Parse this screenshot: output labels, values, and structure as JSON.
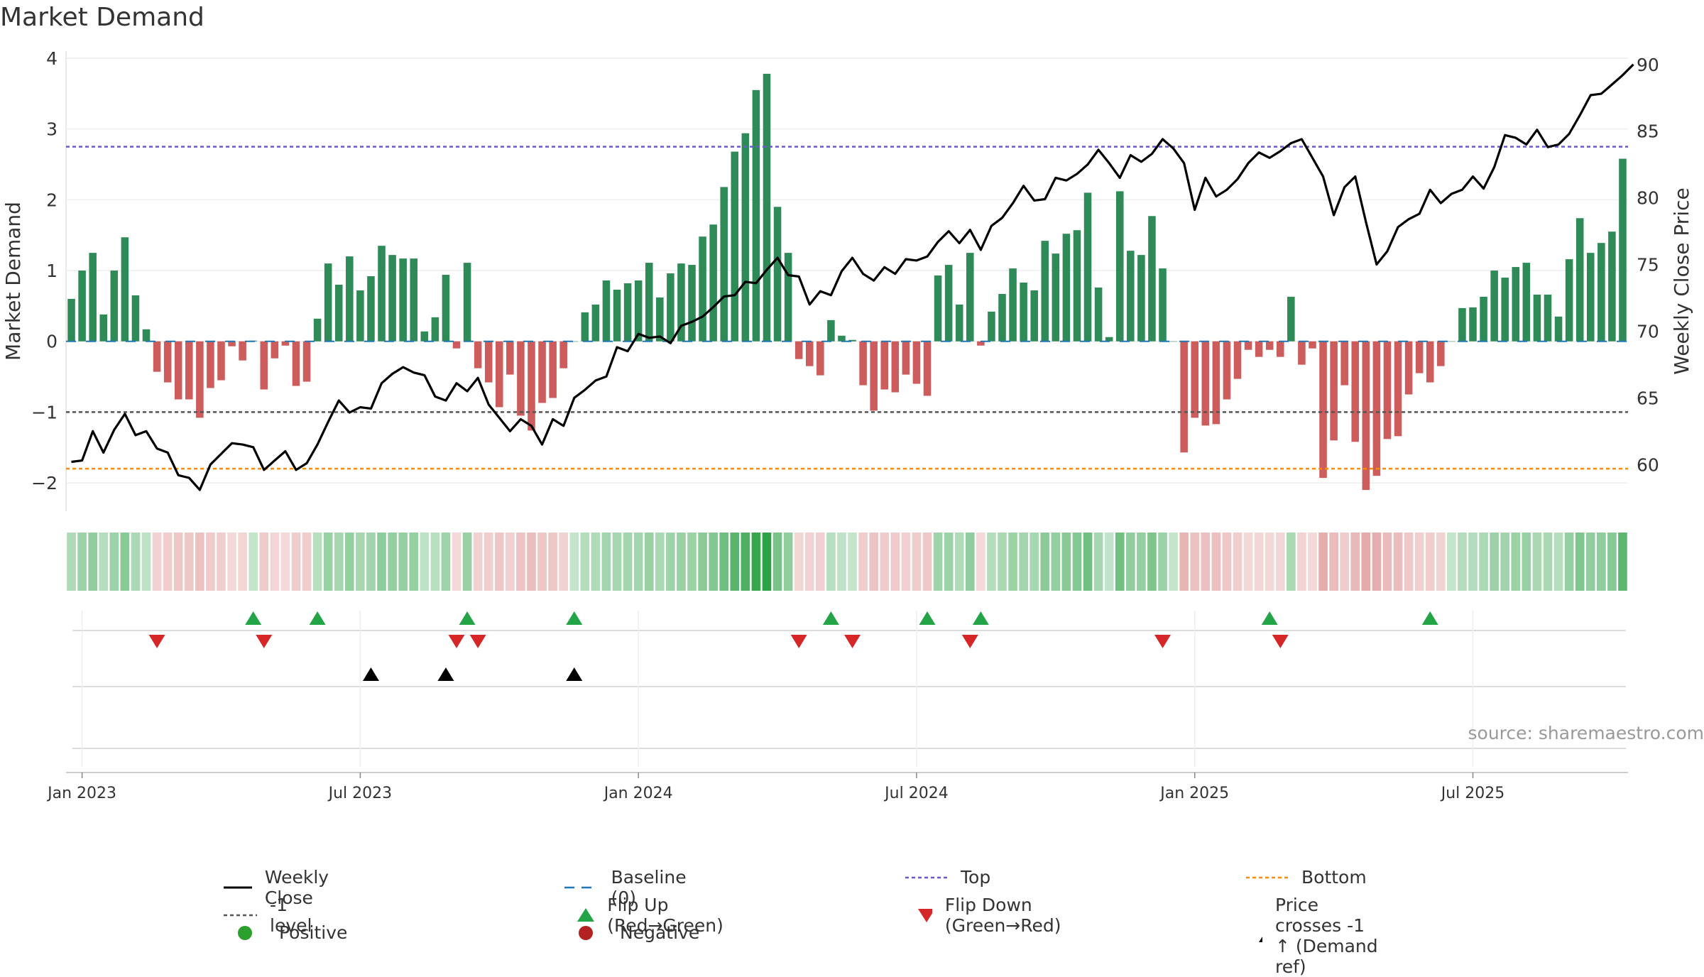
{
  "title": "Market Demand",
  "source": "source: sharemaestro.com",
  "colors": {
    "positive": "#2e8b57",
    "negative": "#cd5c5c",
    "baseline": "#1f77b4",
    "top": "#6a5acd",
    "bottom": "#ff8c00",
    "minus1": "#555555",
    "flip_up": "#22a447",
    "flip_down": "#d62728",
    "cross": "#000000",
    "close": "#000000"
  },
  "legend": [
    {
      "key": "close",
      "label": "Weekly Close",
      "marker": "line"
    },
    {
      "key": "baseline",
      "label": "Baseline (0)",
      "marker": "dash"
    },
    {
      "key": "top",
      "label": "Top",
      "marker": "dot"
    },
    {
      "key": "bottom",
      "label": "Bottom",
      "marker": "dot"
    },
    {
      "key": "minus1",
      "label": "-1 level",
      "marker": "dot"
    },
    {
      "key": "flip_up",
      "label": "Flip Up (Red→Green)",
      "marker": "tri-up"
    },
    {
      "key": "flip_down",
      "label": "Flip Down (Green→Red)",
      "marker": "tri-down"
    },
    {
      "key": "cross",
      "label": "Price crosses -1 ↑ (Demand ref)",
      "marker": "tri-up"
    },
    {
      "key": "positive",
      "label": "Positive",
      "marker": "circle-pos"
    },
    {
      "key": "negative",
      "label": "Negative",
      "marker": "circle-neg"
    }
  ],
  "chart_data": {
    "type": "bar",
    "title": "Market Demand",
    "ylabel": "Market Demand",
    "y2label": "Weekly Close Price",
    "ylim": [
      -2.4,
      4.1
    ],
    "y2lim": [
      56.5,
      91
    ],
    "yticks": [
      -2,
      -1,
      0,
      1,
      2,
      3,
      4
    ],
    "ytick_labels": [
      "−2",
      "−1",
      "0",
      "1",
      "2",
      "3",
      "4"
    ],
    "y2ticks": [
      60,
      65,
      70,
      75,
      80,
      85,
      90
    ],
    "xticks": [
      "Jan 2023",
      "Jul 2023",
      "Jan 2024",
      "Jul 2024",
      "Jan 2025",
      "Jul 2025"
    ],
    "xtick_index": [
      1.5,
      27.5,
      53.5,
      79.5,
      105.5,
      131.5
    ],
    "ref_lines": {
      "top": 2.75,
      "minus1": -1.0,
      "bottom": -1.8,
      "baseline": 0
    },
    "demand": [
      0.6,
      1.0,
      1.25,
      0.38,
      1.0,
      1.47,
      0.65,
      0.17,
      -0.43,
      -0.58,
      -0.82,
      -0.82,
      -1.08,
      -0.66,
      -0.55,
      -0.07,
      -0.27,
      0.01,
      -0.68,
      -0.24,
      -0.06,
      -0.63,
      -0.57,
      0.32,
      1.1,
      0.8,
      1.2,
      0.72,
      0.92,
      1.35,
      1.22,
      1.17,
      1.17,
      0.14,
      0.34,
      0.94,
      -0.1,
      1.11,
      -0.38,
      -0.58,
      -0.93,
      -0.47,
      -1.05,
      -1.26,
      -0.87,
      -0.8,
      -0.38,
      0.0,
      0.41,
      0.52,
      0.86,
      0.73,
      0.82,
      0.86,
      1.11,
      0.62,
      0.96,
      1.1,
      1.08,
      1.48,
      1.65,
      2.18,
      2.68,
      2.94,
      3.55,
      3.78,
      1.9,
      1.25,
      -0.25,
      -0.35,
      -0.48,
      0.3,
      0.08,
      0.02,
      -0.62,
      -0.98,
      -0.68,
      -0.72,
      -0.47,
      -0.6,
      -0.77,
      0.93,
      1.08,
      0.52,
      1.25,
      -0.06,
      0.42,
      0.67,
      1.03,
      0.83,
      0.72,
      1.42,
      1.24,
      1.52,
      1.57,
      2.1,
      0.76,
      0.06,
      2.12,
      1.28,
      1.22,
      1.77,
      1.03,
      0.0,
      -1.57,
      -1.08,
      -1.19,
      -1.17,
      -0.82,
      -0.53,
      -0.12,
      -0.22,
      -0.12,
      -0.22,
      0.63,
      -0.33,
      -0.1,
      -1.93,
      -1.4,
      -0.62,
      -1.42,
      -2.1,
      -1.9,
      -1.38,
      -1.34,
      -0.75,
      -0.45,
      -0.58,
      -0.35,
      0.0,
      0.47,
      0.48,
      0.63,
      1.0,
      0.9,
      1.05,
      1.11,
      0.66,
      0.66,
      0.35,
      1.16,
      1.74,
      1.25,
      1.39,
      1.55,
      2.58
    ],
    "close": [
      60.2,
      60.3,
      62.5,
      60.9,
      62.6,
      63.8,
      62.2,
      62.5,
      61.2,
      60.9,
      59.2,
      59.0,
      58.1,
      60.0,
      60.8,
      61.6,
      61.5,
      61.3,
      59.6,
      60.3,
      61.0,
      59.6,
      60.1,
      61.5,
      63.2,
      64.8,
      63.9,
      64.3,
      64.2,
      66.1,
      66.8,
      67.3,
      66.9,
      66.7,
      65.1,
      64.8,
      66.1,
      65.5,
      66.5,
      64.5,
      63.5,
      62.5,
      63.4,
      62.9,
      61.5,
      63.4,
      62.9,
      65.0,
      65.6,
      66.3,
      66.6,
      68.8,
      68.5,
      69.8,
      69.5,
      69.6,
      69.1,
      70.4,
      70.7,
      71.1,
      71.8,
      72.6,
      72.7,
      73.7,
      73.6,
      74.6,
      75.5,
      74.2,
      74.1,
      72.0,
      73.0,
      72.7,
      74.5,
      75.5,
      74.3,
      73.8,
      74.8,
      74.3,
      75.4,
      75.3,
      75.6,
      76.7,
      77.5,
      76.6,
      77.6,
      76.1,
      77.9,
      78.5,
      79.6,
      80.9,
      79.8,
      79.9,
      81.5,
      81.3,
      81.8,
      82.5,
      83.6,
      82.6,
      81.5,
      83.2,
      82.7,
      83.3,
      84.4,
      83.7,
      82.6,
      79.1,
      81.5,
      80.1,
      80.6,
      81.4,
      82.6,
      83.4,
      83.0,
      83.5,
      84.1,
      84.4,
      83.0,
      81.6,
      78.7,
      80.8,
      81.6,
      78.2,
      75.0,
      76.0,
      77.8,
      78.4,
      78.8,
      80.6,
      79.6,
      80.3,
      80.6,
      81.6,
      80.7,
      82.3,
      84.7,
      84.5,
      84.0,
      85.1,
      83.8,
      84.0,
      84.8,
      86.2,
      87.7,
      87.8,
      88.5,
      89.2,
      90.0
    ],
    "flip_up": [
      17,
      23,
      37,
      47,
      71,
      80,
      85,
      112,
      127
    ],
    "flip_down": [
      8,
      18,
      36,
      38,
      68,
      73,
      84,
      102,
      113
    ],
    "price_cross_up": [
      28,
      35,
      47
    ]
  }
}
